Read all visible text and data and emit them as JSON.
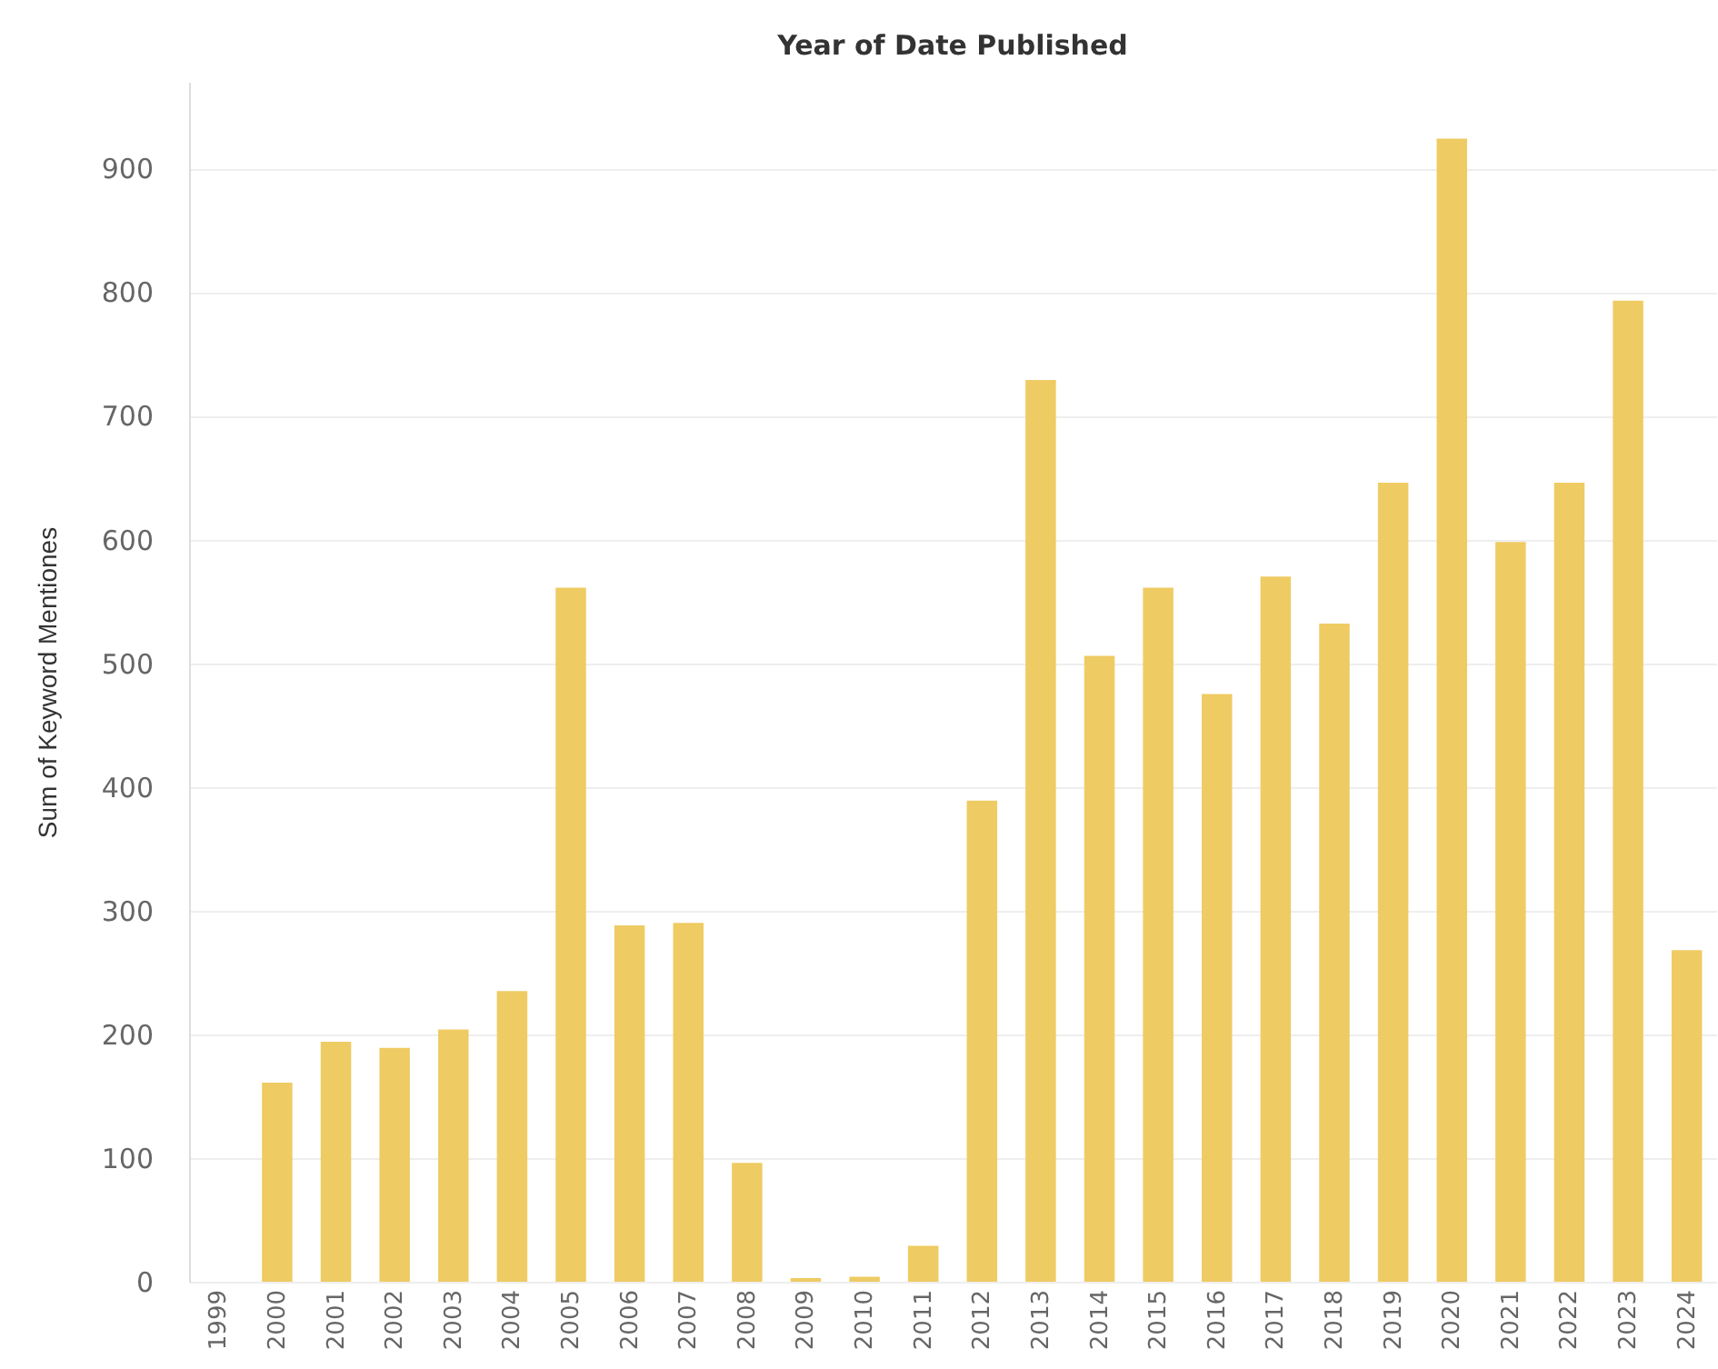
{
  "chart_data": {
    "type": "bar",
    "title": "Year of Date Published",
    "ylabel": "Sum of Keyword Mentiones",
    "categories": [
      "1999",
      "2000",
      "2001",
      "2002",
      "2003",
      "2004",
      "2005",
      "2006",
      "2007",
      "2008",
      "2009",
      "2010",
      "2011",
      "2012",
      "2013",
      "2014",
      "2015",
      "2016",
      "2017",
      "2018",
      "2019",
      "2020",
      "2021",
      "2022",
      "2023",
      "2024"
    ],
    "values": [
      0,
      161,
      194,
      189,
      204,
      235,
      561,
      288,
      290,
      96,
      3,
      4,
      29,
      389,
      729,
      506,
      561,
      475,
      570,
      532,
      646,
      924,
      598,
      646,
      793,
      268
    ],
    "color": "#efcb63",
    "ylim": [
      0,
      970
    ],
    "yticks": [
      0,
      100,
      200,
      300,
      400,
      500,
      600,
      700,
      800,
      900
    ],
    "grid": "y"
  }
}
